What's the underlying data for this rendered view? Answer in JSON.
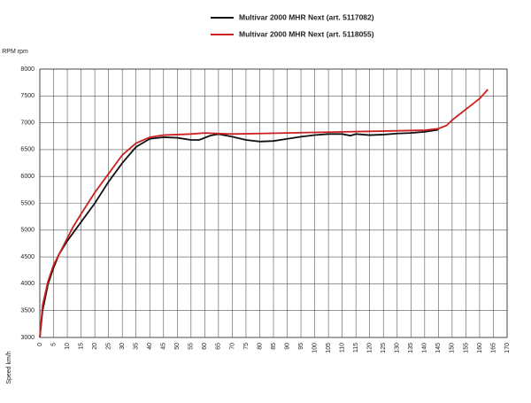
{
  "chart_data": {
    "type": "line",
    "x_label": "Speed km/h",
    "y_label": "RPM rpm",
    "xlim": [
      0,
      170
    ],
    "ylim": [
      3000,
      8000
    ],
    "xticks": [
      0,
      5,
      10,
      15,
      20,
      25,
      30,
      35,
      40,
      45,
      50,
      55,
      60,
      65,
      70,
      75,
      80,
      85,
      90,
      95,
      100,
      105,
      110,
      115,
      120,
      125,
      130,
      135,
      140,
      145,
      150,
      155,
      160,
      165,
      170
    ],
    "yticks": [
      3000,
      3500,
      4000,
      4500,
      5000,
      5500,
      6000,
      6500,
      7000,
      7500,
      8000
    ],
    "grid": true,
    "series": [
      {
        "name": "Multivar 2000 MHR Next (art. 5117082)",
        "color": "#111111",
        "x": [
          0,
          1,
          3,
          5,
          7,
          10,
          15,
          20,
          25,
          30,
          35,
          40,
          45,
          50,
          55,
          58,
          62,
          65,
          70,
          75,
          80,
          85,
          90,
          95,
          100,
          105,
          110,
          113,
          115,
          120,
          125,
          130,
          135,
          140,
          145
        ],
        "values": [
          3000,
          3500,
          4000,
          4300,
          4550,
          4800,
          5150,
          5500,
          5900,
          6250,
          6550,
          6700,
          6730,
          6720,
          6680,
          6680,
          6760,
          6790,
          6740,
          6680,
          6650,
          6660,
          6700,
          6740,
          6770,
          6790,
          6790,
          6760,
          6790,
          6770,
          6780,
          6800,
          6810,
          6830,
          6870
        ]
      },
      {
        "name": "Multivar 2000 MHR Next (art. 5118055)",
        "color": "#cc1f1f",
        "x": [
          0,
          1,
          3,
          5,
          10,
          12,
          15,
          20,
          25,
          30,
          35,
          40,
          45,
          50,
          55,
          60,
          65,
          70,
          80,
          90,
          100,
          110,
          120,
          130,
          140,
          145,
          148,
          150,
          155,
          160,
          163
        ],
        "values": [
          3000,
          3600,
          4050,
          4350,
          4850,
          5050,
          5300,
          5700,
          6050,
          6400,
          6620,
          6730,
          6770,
          6780,
          6790,
          6810,
          6800,
          6790,
          6800,
          6810,
          6820,
          6830,
          6840,
          6850,
          6860,
          6890,
          6950,
          7050,
          7250,
          7450,
          7620
        ]
      }
    ]
  }
}
